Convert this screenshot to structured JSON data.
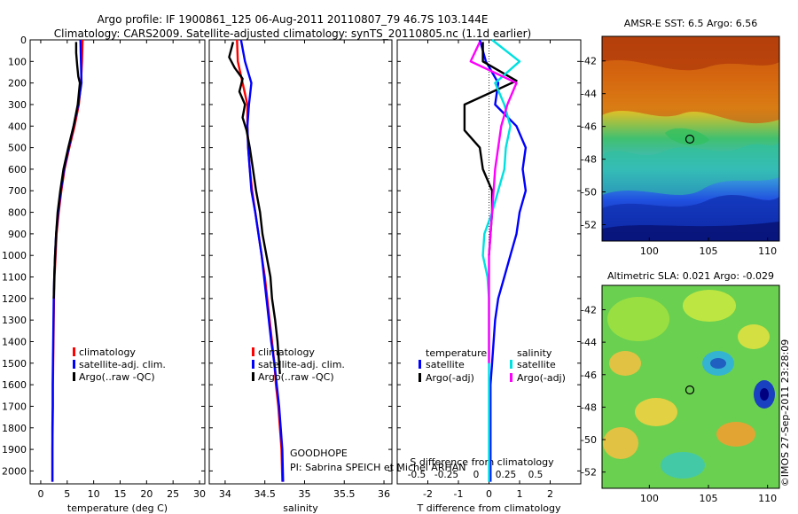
{
  "figure": {
    "title_line1": "Argo profile: IF 1900861_125 06-Aug-2011 20110807_79 46.7S 103.144E",
    "title_line2": "Climatology: CARS2009. Satellite-adjusted climatology: synTS_20110805.nc (1.1d earlier)",
    "platform": "GOODHOPE",
    "pi": "PI: Sabrina SPEICH et Michel ARHAN",
    "watermark": "©IMOS 27-Sep-2011 23:28:09"
  },
  "colors": {
    "climatology": "#ff0000",
    "satellite": "#0000ff",
    "argo": "#000000",
    "salinity_satellite": "#00e0e0",
    "salinity_argo": "#ff00ff"
  },
  "chart_data": [
    {
      "type": "line",
      "id": "temperature",
      "xlabel": "temperature (deg C)",
      "ylabel": "",
      "xlim": [
        -2,
        31
      ],
      "ylim": [
        2060,
        0
      ],
      "xticks": [
        0,
        5,
        10,
        15,
        20,
        25,
        30
      ],
      "yticks": [
        0,
        100,
        200,
        300,
        400,
        500,
        600,
        700,
        800,
        900,
        1000,
        1100,
        1200,
        1300,
        1400,
        1500,
        1600,
        1700,
        1800,
        1900,
        2000
      ],
      "legend": [
        "climatology",
        "satellite-adj. clim.",
        "Argo(..raw -QC)"
      ],
      "series": [
        {
          "name": "climatology",
          "color": "#ff0000",
          "x": [
            7.9,
            7.8,
            7.6,
            7.2,
            6.4,
            5.4,
            4.5,
            3.9,
            3.4,
            3.0,
            2.8,
            2.6,
            2.5,
            2.45,
            2.4,
            2.35,
            2.3,
            2.3,
            2.25,
            2.2,
            2.2
          ],
          "y": [
            0,
            100,
            200,
            300,
            400,
            500,
            600,
            700,
            800,
            900,
            1000,
            1100,
            1200,
            1300,
            1400,
            1500,
            1600,
            1700,
            1800,
            1900,
            2050
          ]
        },
        {
          "name": "satellite-adj. clim.",
          "color": "#0000ff",
          "x": [
            7.5,
            7.6,
            7.7,
            7.1,
            6.2,
            5.3,
            4.4,
            3.8,
            3.3,
            2.9,
            2.7,
            2.55,
            2.45,
            2.4,
            2.35,
            2.3,
            2.25,
            2.25,
            2.2,
            2.2,
            2.2
          ],
          "y": [
            0,
            100,
            200,
            300,
            400,
            500,
            600,
            700,
            800,
            900,
            1000,
            1100,
            1200,
            1300,
            1400,
            1500,
            1600,
            1700,
            1800,
            1900,
            2050
          ]
        },
        {
          "name": "Argo(..raw -QC)",
          "color": "#000000",
          "x": [
            6.7,
            6.7,
            6.9,
            7.1,
            7.4,
            7.0,
            6.2,
            5.2,
            4.3,
            3.7,
            3.2,
            2.9,
            2.7,
            2.55,
            2.45
          ],
          "y": [
            10,
            60,
            120,
            170,
            200,
            300,
            400,
            500,
            600,
            700,
            800,
            900,
            1000,
            1100,
            1200
          ]
        }
      ]
    },
    {
      "type": "line",
      "id": "salinity",
      "xlabel": "salinity",
      "ylabel": "",
      "xlim": [
        33.8,
        36.1
      ],
      "ylim": [
        2060,
        0
      ],
      "xticks": [
        34,
        34.5,
        35,
        35.5,
        36
      ],
      "legend": [
        "climatology",
        "satellite-adj. clim.",
        "Argo(..raw -QC)"
      ],
      "series": [
        {
          "name": "climatology",
          "color": "#ff0000",
          "x": [
            34.15,
            34.16,
            34.22,
            34.28,
            34.28,
            34.29,
            34.31,
            34.34,
            34.38,
            34.42,
            34.46,
            34.5,
            34.53,
            34.56,
            34.59,
            34.62,
            34.64,
            34.67,
            34.69,
            34.71,
            34.72
          ],
          "y": [
            0,
            100,
            200,
            300,
            400,
            500,
            600,
            700,
            800,
            900,
            1000,
            1100,
            1200,
            1300,
            1400,
            1500,
            1600,
            1700,
            1800,
            1900,
            2050
          ]
        },
        {
          "name": "satellite-adj. clim.",
          "color": "#0000ff",
          "x": [
            34.2,
            34.25,
            34.33,
            34.3,
            34.28,
            34.29,
            34.31,
            34.33,
            34.38,
            34.42,
            34.46,
            34.49,
            34.52,
            34.55,
            34.58,
            34.62,
            34.65,
            34.68,
            34.7,
            34.72,
            34.73
          ],
          "y": [
            0,
            100,
            200,
            300,
            400,
            500,
            600,
            700,
            800,
            900,
            1000,
            1100,
            1200,
            1300,
            1400,
            1500,
            1600,
            1700,
            1800,
            1900,
            2050
          ]
        },
        {
          "name": "Argo(..raw -QC)",
          "color": "#000000",
          "x": [
            34.1,
            34.05,
            34.12,
            34.22,
            34.18,
            34.25,
            34.22,
            34.27,
            34.31,
            34.35,
            34.39,
            34.44,
            34.47,
            34.52,
            34.57,
            34.59,
            34.63,
            34.66,
            34.69
          ],
          "y": [
            10,
            80,
            130,
            180,
            240,
            300,
            360,
            420,
            500,
            600,
            700,
            800,
            900,
            1000,
            1100,
            1200,
            1300,
            1400,
            1550
          ]
        }
      ]
    },
    {
      "type": "line",
      "id": "difference",
      "xlabel": "T difference from climatology",
      "ylabel": "S difference from climatology",
      "xlim": [
        -3,
        3
      ],
      "ylim": [
        2060,
        0
      ],
      "xticks": [
        -2,
        -1,
        0,
        1,
        2
      ],
      "s_ticks": [
        -0.5,
        -0.25,
        0,
        0.25,
        0.5
      ],
      "s_tick_labels": [
        "-0.5",
        "-0.25",
        "0",
        "0.25",
        "0.5"
      ],
      "legend_groups": [
        "temperature",
        "salinity"
      ],
      "legend": [
        "satellite",
        "Argo(-adj)",
        "satellite",
        "Argo(-adj)"
      ],
      "series": [
        {
          "name": "temperature satellite",
          "color": "#0000ff",
          "x": [
            -0.3,
            -0.1,
            0.3,
            0.2,
            0.9,
            1.2,
            1.1,
            1.2,
            1.0,
            0.9,
            0.7,
            0.5,
            0.3,
            0.2,
            0.15,
            0.1,
            0.05,
            0.05,
            0.05,
            0.05,
            0.05
          ],
          "y": [
            0,
            100,
            200,
            300,
            400,
            500,
            600,
            700,
            800,
            900,
            1000,
            1100,
            1200,
            1300,
            1400,
            1500,
            1600,
            1700,
            1800,
            1900,
            2050
          ]
        },
        {
          "name": "temperature Argo(-adj)",
          "color": "#000000",
          "x": [
            -0.2,
            -0.2,
            0.9,
            -0.8,
            -0.8,
            -0.3,
            -0.2,
            0.1,
            0.1,
            0.05,
            0.0
          ],
          "y": [
            10,
            100,
            190,
            300,
            420,
            500,
            600,
            700,
            800,
            900,
            1000
          ]
        },
        {
          "name": "salinity satellite",
          "color": "#00e0e0",
          "x": [
            0.1,
            1.0,
            0.2,
            0.5,
            0.7,
            0.55,
            0.5,
            0.3,
            0.1,
            -0.15,
            -0.2,
            -0.05,
            0.0,
            0.0,
            0.0,
            0.0
          ],
          "y": [
            0,
            100,
            200,
            300,
            400,
            500,
            600,
            700,
            800,
            900,
            1000,
            1100,
            1200,
            1400,
            1700,
            2050
          ]
        },
        {
          "name": "salinity Argo(-adj)",
          "color": "#ff00ff",
          "x": [
            -0.3,
            -0.6,
            0.9,
            0.6,
            0.4,
            0.2,
            0.1,
            0.0,
            0.0
          ],
          "y": [
            10,
            100,
            200,
            300,
            400,
            600,
            800,
            1000,
            1500
          ]
        }
      ]
    },
    {
      "type": "heatmap",
      "id": "sst",
      "title": "AMSR-E SST: 6.5 Argo: 6.56",
      "xlim": [
        96,
        111
      ],
      "ylim": [
        -53,
        -40.5
      ],
      "xticks": [
        100,
        105,
        110
      ],
      "yticks": [
        -42,
        -44,
        -46,
        -48,
        -50,
        -52
      ],
      "float_position": {
        "lon": 103.144,
        "lat": -46.7
      }
    },
    {
      "type": "heatmap",
      "id": "sla",
      "title": "Altimetric SLA: 0.021 Argo: -0.029",
      "xlim": [
        96,
        111
      ],
      "ylim": [
        -53,
        -40.5
      ],
      "xticks": [
        100,
        105,
        110
      ],
      "yticks": [
        -42,
        -44,
        -46,
        -48,
        -50,
        -52
      ],
      "float_position": {
        "lon": 103.144,
        "lat": -46.7
      }
    }
  ]
}
